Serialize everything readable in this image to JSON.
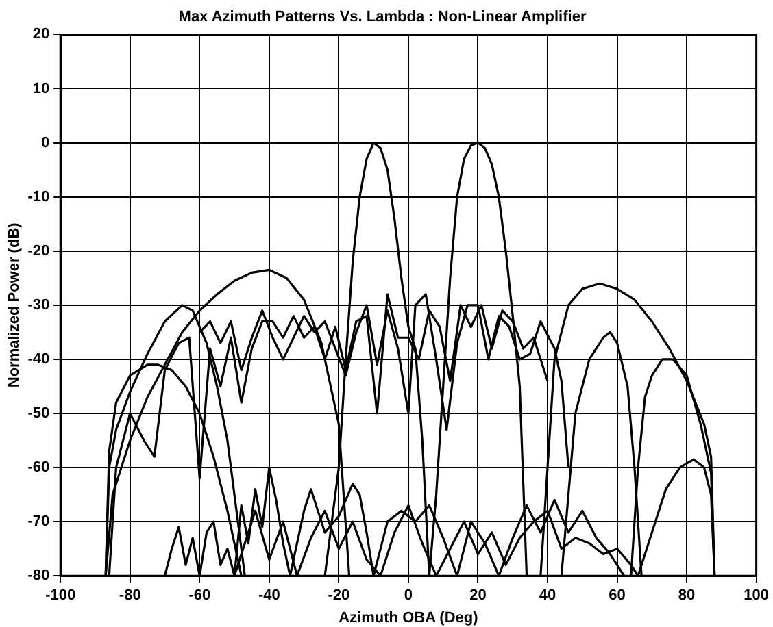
{
  "chart_data": {
    "type": "line",
    "title": "Max Azimuth Patterns Vs. Lambda : Non-Linear Amplifier",
    "xlabel": "Azimuth OBA (Deg)",
    "ylabel": "Normalized Power (dB)",
    "xlim": [
      -100,
      100
    ],
    "xticks": [
      -100,
      -80,
      -60,
      -40,
      -20,
      0,
      20,
      40,
      60,
      80,
      100
    ],
    "ylim": [
      -80,
      20
    ],
    "yticks": [
      -80,
      -70,
      -60,
      -50,
      -40,
      -30,
      -20,
      -10,
      0,
      10,
      20
    ],
    "grid": true,
    "legend": false,
    "marker": "none",
    "line_style": "solid",
    "series": [
      {
        "color": "#000000",
        "x": [
          -24,
          -20,
          -18,
          -16,
          -14,
          -12,
          -10,
          -8,
          -6,
          -4,
          -2,
          0,
          2,
          4,
          6
        ],
        "values": [
          -80,
          -60,
          -40,
          -22,
          -10,
          -3,
          0,
          -1,
          -5,
          -14,
          -25,
          -34,
          -38,
          -55,
          -80
        ]
      },
      {
        "color": "#000000",
        "x": [
          6,
          8,
          10,
          12,
          14,
          16,
          18,
          20,
          22,
          24,
          26,
          28,
          30,
          32,
          34
        ],
        "values": [
          -80,
          -65,
          -45,
          -25,
          -10,
          -3,
          -0.5,
          0,
          -1,
          -4,
          -10,
          -20,
          -32,
          -45,
          -80
        ]
      },
      {
        "color": "#000000",
        "x": [
          -87,
          -85,
          -80,
          -75,
          -70,
          -65,
          -60,
          -55,
          -50,
          -45,
          -40,
          -35,
          -30,
          -25,
          -20,
          -17
        ],
        "values": [
          -80,
          -65,
          -55,
          -47,
          -41,
          -35,
          -31,
          -28,
          -25.5,
          -24,
          -23.5,
          -25,
          -29,
          -37,
          -52,
          -80
        ]
      },
      {
        "color": "#000000",
        "x": [
          38,
          42,
          46,
          50,
          55,
          60,
          65,
          70,
          75,
          80,
          85,
          87,
          88
        ],
        "values": [
          -80,
          -40,
          -30,
          -27,
          -26,
          -27,
          -29,
          -33,
          -38,
          -44,
          -52,
          -58,
          -80
        ]
      },
      {
        "color": "#000000",
        "x": [
          -87,
          -86,
          -84,
          -80,
          -75,
          -70,
          -65,
          -62,
          -58,
          -55,
          -52,
          -50,
          -47
        ],
        "values": [
          -80,
          -60,
          -53,
          -46,
          -39,
          -33,
          -30,
          -31,
          -37,
          -45,
          -55,
          -65,
          -80
        ]
      },
      {
        "color": "#000000",
        "x": [
          -87,
          -86,
          -84,
          -80,
          -75,
          -72,
          -68,
          -64,
          -60,
          -56,
          -52,
          -48
        ],
        "values": [
          -80,
          -57,
          -48,
          -43,
          -41,
          -41,
          -42,
          -45,
          -50,
          -58,
          -68,
          -80
        ]
      },
      {
        "color": "#000000",
        "x": [
          64,
          66,
          68,
          70,
          73,
          76,
          80,
          84,
          87,
          88
        ],
        "values": [
          -80,
          -60,
          -47,
          -43,
          -40,
          -40,
          -43,
          -52,
          -61,
          -80
        ]
      },
      {
        "color": "#000000",
        "x": [
          66,
          70,
          74,
          78,
          82,
          85,
          87,
          88
        ],
        "values": [
          -80,
          -72,
          -64,
          -60,
          -58.5,
          -60,
          -65,
          -80
        ]
      },
      {
        "color": "#000000",
        "x": [
          44,
          48,
          52,
          56,
          58,
          60,
          63,
          65,
          67
        ],
        "values": [
          -80,
          -50,
          -40,
          -36,
          -35,
          -37,
          -45,
          -60,
          -80
        ]
      },
      {
        "color": "#000000",
        "x": [
          -86,
          -84,
          -80,
          -76,
          -73,
          -70,
          -66,
          -63,
          -60,
          -57,
          -54,
          -51,
          -48,
          -45,
          -42,
          -39,
          -36,
          -33,
          -30,
          -27,
          -24,
          -21,
          -18,
          -15,
          -12,
          -9,
          -6,
          -3,
          0,
          3,
          6,
          9,
          12,
          15,
          18,
          21,
          24,
          27,
          30,
          33,
          36,
          40
        ],
        "values": [
          -80,
          -60,
          -50,
          -55,
          -58,
          -42,
          -37,
          -36,
          -62,
          -38,
          -45,
          -36,
          -48,
          -38,
          -33,
          -33,
          -36,
          -32,
          -36,
          -34,
          -40,
          -34,
          -42,
          -33,
          -32,
          -50,
          -28,
          -36,
          -36,
          -40,
          -31,
          -34,
          -44,
          -30,
          -34,
          -30,
          -38,
          -31,
          -33,
          -38,
          -36,
          -44
        ]
      },
      {
        "color": "#000000",
        "x": [
          -60,
          -57,
          -54,
          -51,
          -48,
          -45,
          -42,
          -39,
          -36,
          -33,
          -30,
          -27,
          -24,
          -21,
          -18,
          -15,
          -12,
          -9,
          -6,
          -3,
          0,
          2,
          5,
          8,
          11,
          14,
          17,
          20,
          23,
          26,
          29,
          32,
          35,
          38,
          42,
          44,
          46
        ],
        "values": [
          -35,
          -33,
          -37,
          -33,
          -42,
          -36,
          -31,
          -36,
          -40,
          -36,
          -32,
          -35,
          -33,
          -38,
          -43,
          -35,
          -30,
          -41,
          -31,
          -38,
          -50,
          -30,
          -28,
          -40,
          -53,
          -37,
          -30,
          -30,
          -40,
          -32,
          -34,
          -40,
          -39,
          -33,
          -38,
          -44,
          -60
        ]
      },
      {
        "color": "#000000",
        "x": [
          -70,
          -68,
          -66,
          -64,
          -62,
          -60,
          -58,
          -56,
          -54,
          -52,
          -50,
          -48,
          -46,
          -44,
          -42,
          -40,
          -38,
          -36,
          -34,
          -30,
          -28,
          -24,
          -20,
          -16,
          -14,
          -12,
          -10,
          -6,
          -2,
          2,
          6,
          10,
          14,
          18,
          22,
          26,
          30,
          34,
          38,
          42,
          46,
          50,
          54,
          58,
          62
        ],
        "values": [
          -80,
          -75,
          -71,
          -78,
          -73,
          -80,
          -72,
          -70,
          -78,
          -75,
          -80,
          -67,
          -74,
          -64,
          -71,
          -60,
          -66,
          -74,
          -80,
          -68,
          -64,
          -72,
          -69,
          -63,
          -65,
          -72,
          -80,
          -70,
          -68,
          -70,
          -67,
          -73,
          -80,
          -70,
          -74,
          -80,
          -73,
          -67,
          -72,
          -66,
          -72,
          -68,
          -73,
          -76,
          -80
        ]
      },
      {
        "color": "#000000",
        "x": [
          -50,
          -46,
          -44,
          -40,
          -36,
          -32,
          -28,
          -24,
          -20,
          -16,
          -12,
          -8,
          -4,
          0,
          4,
          8,
          12,
          16,
          20,
          24,
          28,
          32,
          36,
          40,
          44,
          48,
          52,
          56,
          60,
          64,
          66
        ],
        "values": [
          -80,
          -72,
          -68,
          -77,
          -70,
          -80,
          -73,
          -68,
          -75,
          -70,
          -77,
          -80,
          -72,
          -67,
          -74,
          -80,
          -75,
          -70,
          -76,
          -72,
          -78,
          -73,
          -70,
          -68,
          -75,
          -73,
          -74,
          -76,
          -75,
          -78,
          -80
        ]
      }
    ]
  }
}
